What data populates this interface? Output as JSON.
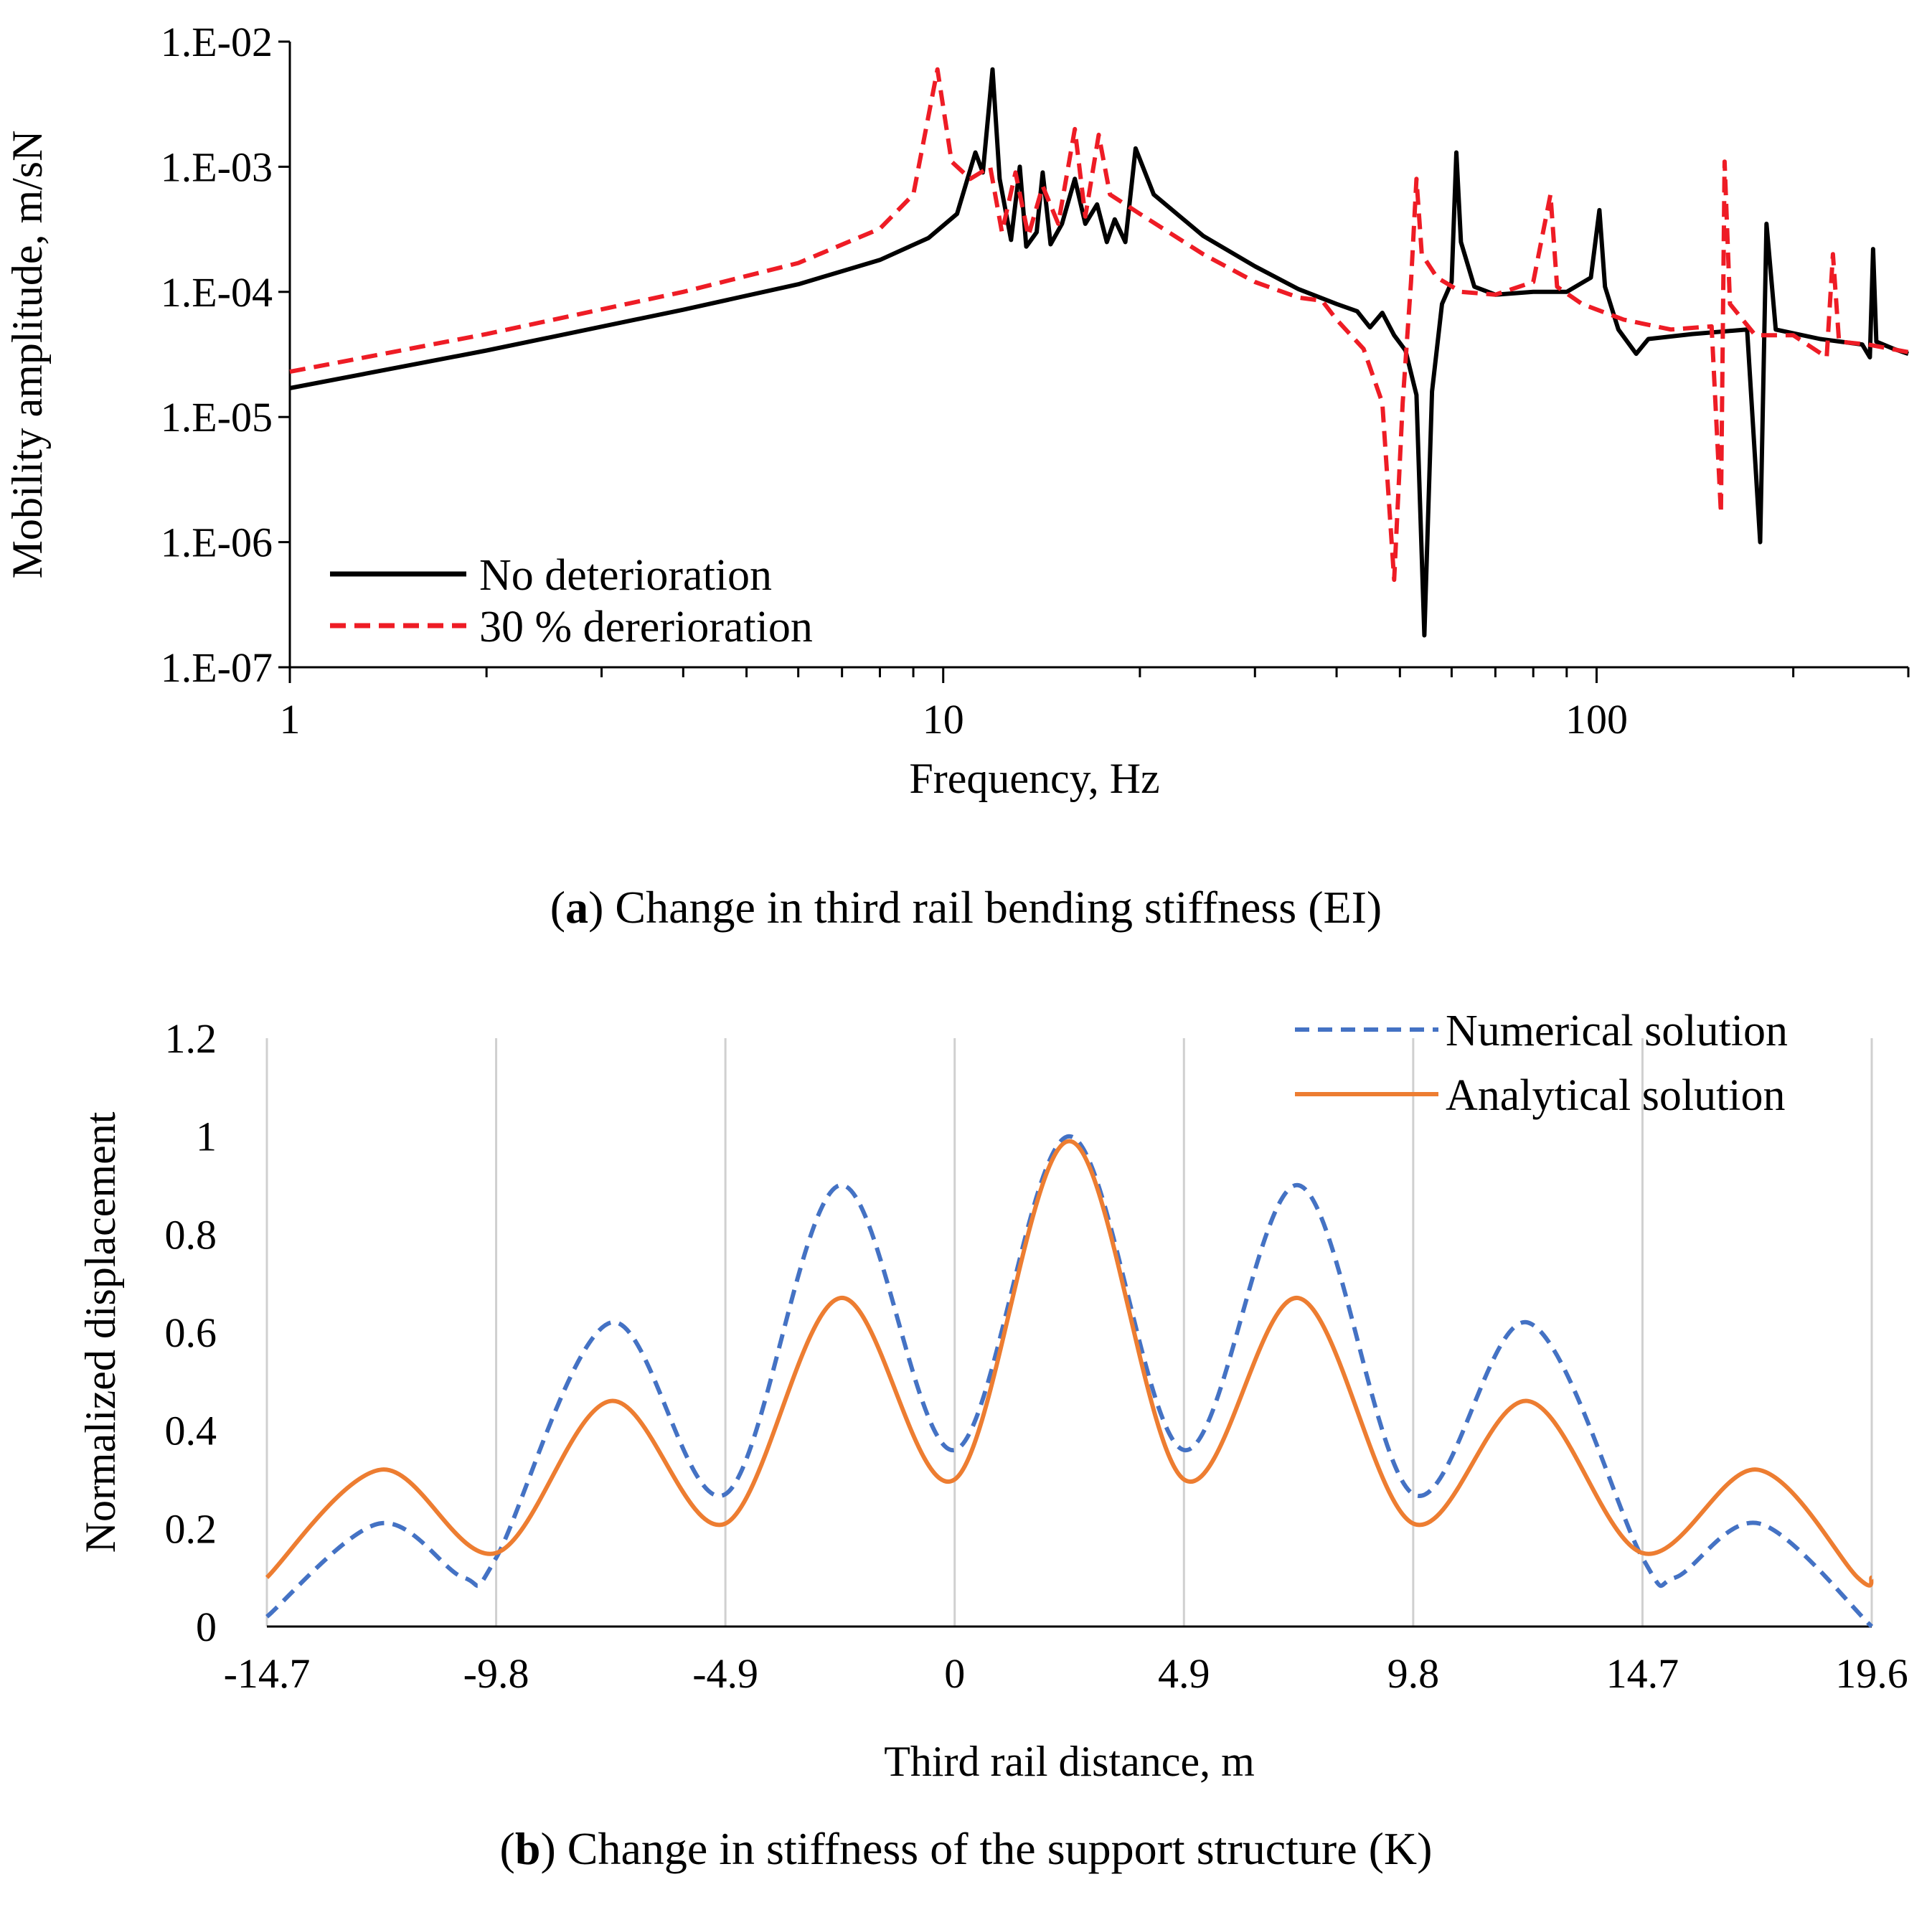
{
  "chart_data": [
    {
      "type": "line",
      "panel": "a",
      "caption_label": "a",
      "caption_text": ") Change in third rail bending stiffness (EI)",
      "xlabel": "Frequency, Hz",
      "ylabel": "Mobility amplitude, m/sN",
      "xscale": "log",
      "yscale": "log",
      "xlim": [
        1,
        300
      ],
      "ylim": [
        1e-07,
        0.01
      ],
      "x_ticks": [
        1,
        10,
        100
      ],
      "x_tick_labels": [
        "1",
        "10",
        "100"
      ],
      "y_ticks": [
        1e-07,
        1e-06,
        1e-05,
        0.0001,
        0.001,
        0.01
      ],
      "y_tick_labels": [
        "1.E-07",
        "1.E-06",
        "1.E-05",
        "1.E-04",
        "1.E-03",
        "1.E-02"
      ],
      "legend_position": "bottom-left",
      "series": [
        {
          "name": "No deterioration",
          "color": "#000000",
          "style": "solid",
          "points": [
            [
              1,
              1.7e-05
            ],
            [
              2,
              3.4e-05
            ],
            [
              4,
              7.2e-05
            ],
            [
              6,
              0.000115
            ],
            [
              8,
              0.00018
            ],
            [
              9.5,
              0.00027
            ],
            [
              10.5,
              0.00042
            ],
            [
              11.2,
              0.0013
            ],
            [
              11.5,
              0.0009
            ],
            [
              11.9,
              0.006
            ],
            [
              12.2,
              0.0008
            ],
            [
              12.7,
              0.00026
            ],
            [
              13.1,
              0.001
            ],
            [
              13.4,
              0.00023
            ],
            [
              13.9,
              0.0003
            ],
            [
              14.2,
              0.0009
            ],
            [
              14.6,
              0.00024
            ],
            [
              15.2,
              0.00035
            ],
            [
              15.9,
              0.0008
            ],
            [
              16.5,
              0.00035
            ],
            [
              17.2,
              0.0005
            ],
            [
              17.8,
              0.00025
            ],
            [
              18.3,
              0.00038
            ],
            [
              19,
              0.00025
            ],
            [
              19.7,
              0.0014
            ],
            [
              21,
              0.0006
            ],
            [
              25,
              0.00028
            ],
            [
              30,
              0.00016
            ],
            [
              35,
              0.000105
            ],
            [
              40,
              8e-05
            ],
            [
              43,
              7e-05
            ],
            [
              45,
              5.2e-05
            ],
            [
              47,
              6.8e-05
            ],
            [
              49,
              4.5e-05
            ],
            [
              51,
              3.4e-05
            ],
            [
              53,
              1.5e-05
            ],
            [
              54.5,
              1.8e-07
            ],
            [
              56,
              1.6e-05
            ],
            [
              58,
              8e-05
            ],
            [
              60,
              0.00012
            ],
            [
              61,
              0.0013
            ],
            [
              62,
              0.00025
            ],
            [
              65,
              0.00011
            ],
            [
              70,
              9.5e-05
            ],
            [
              80,
              0.0001
            ],
            [
              90,
              0.0001
            ],
            [
              98,
              0.00013
            ],
            [
              101,
              0.00045
            ],
            [
              103,
              0.00011
            ],
            [
              108,
              5e-05
            ],
            [
              115,
              3.2e-05
            ],
            [
              120,
              4.2e-05
            ],
            [
              140,
              4.6e-05
            ],
            [
              170,
              5e-05
            ],
            [
              178,
              1e-06
            ],
            [
              182,
              0.00035
            ],
            [
              188,
              5e-05
            ],
            [
              220,
              4.2e-05
            ],
            [
              255,
              3.8e-05
            ],
            [
              262,
              3e-05
            ],
            [
              265,
              0.00022
            ],
            [
              268,
              4e-05
            ],
            [
              285,
              3.5e-05
            ],
            [
              300,
              3.2e-05
            ]
          ]
        },
        {
          "name": "30 % dererioration",
          "color": "#ee1c25",
          "style": "dashed",
          "points": [
            [
              1,
              2.3e-05
            ],
            [
              2,
              4.6e-05
            ],
            [
              4,
              0.0001
            ],
            [
              6,
              0.00017
            ],
            [
              8,
              0.00032
            ],
            [
              9,
              0.0006
            ],
            [
              9.8,
              0.006
            ],
            [
              10.3,
              0.0011
            ],
            [
              11,
              0.0008
            ],
            [
              11.8,
              0.001
            ],
            [
              12.3,
              0.0003
            ],
            [
              12.9,
              0.0009
            ],
            [
              13.5,
              0.00028
            ],
            [
              14.2,
              0.0007
            ],
            [
              15,
              0.00035
            ],
            [
              15.9,
              0.002
            ],
            [
              16.5,
              0.0004
            ],
            [
              17.3,
              0.0018
            ],
            [
              18,
              0.0006
            ],
            [
              20,
              0.00042
            ],
            [
              25,
              0.0002
            ],
            [
              30,
              0.00012
            ],
            [
              35,
              9e-05
            ],
            [
              38,
              8.5e-05
            ],
            [
              40,
              6e-05
            ],
            [
              44,
              3.5e-05
            ],
            [
              47,
              1.3e-05
            ],
            [
              49,
              5e-07
            ],
            [
              50.5,
              1.3e-05
            ],
            [
              52,
              0.00012
            ],
            [
              53,
              0.0008
            ],
            [
              54,
              0.0002
            ],
            [
              57,
              0.00013
            ],
            [
              62,
              0.0001
            ],
            [
              70,
              9.5e-05
            ],
            [
              80,
              0.00012
            ],
            [
              85,
              0.0006
            ],
            [
              87,
              0.00011
            ],
            [
              95,
              8e-05
            ],
            [
              110,
              6e-05
            ],
            [
              130,
              5e-05
            ],
            [
              150,
              5.3e-05
            ],
            [
              155,
              1.7e-06
            ],
            [
              157,
              0.0011
            ],
            [
              160,
              8e-05
            ],
            [
              175,
              4.5e-05
            ],
            [
              200,
              4.5e-05
            ],
            [
              225,
              3e-05
            ],
            [
              230,
              0.0002
            ],
            [
              235,
              4e-05
            ],
            [
              260,
              3.8e-05
            ],
            [
              300,
              3.3e-05
            ]
          ]
        }
      ]
    },
    {
      "type": "line",
      "panel": "b",
      "caption_label": "b",
      "caption_text": ") Change in stiffness of the support structure (K)",
      "xlabel": "Third rail distance, m",
      "ylabel": "Normalized  displacement",
      "xlim": [
        -14.7,
        19.6
      ],
      "ylim": [
        0,
        1.2
      ],
      "x_ticks": [
        -14.7,
        -9.8,
        -4.9,
        0,
        4.9,
        9.8,
        14.7,
        19.6
      ],
      "x_tick_labels": [
        "-14.7",
        "-9.8",
        "-4.9",
        "0",
        "4.9",
        "9.8",
        "14.7",
        "19.6"
      ],
      "y_ticks": [
        0,
        0.2,
        0.4,
        0.6,
        0.8,
        1,
        1.2
      ],
      "y_tick_labels": [
        "0",
        "0.2",
        "0.4",
        "0.6",
        "0.8",
        "1",
        "1.2"
      ],
      "grid": "vertical",
      "legend_position": "top-right",
      "series": [
        {
          "name": "Numerical solution",
          "color": "#4472c4",
          "style": "dashed",
          "points": [
            [
              -14.7,
              0.02
            ],
            [
              -12.3,
              0.21
            ],
            [
              -10.5,
              0.1
            ],
            [
              -9.8,
              0.14
            ],
            [
              -7.35,
              0.62
            ],
            [
              -4.9,
              0.27
            ],
            [
              -2.45,
              0.9
            ],
            [
              0,
              0.36
            ],
            [
              2.45,
              1.0
            ],
            [
              4.9,
              0.36
            ],
            [
              7.35,
              0.9
            ],
            [
              9.8,
              0.27
            ],
            [
              12.25,
              0.62
            ],
            [
              14.7,
              0.14
            ],
            [
              15.4,
              0.1
            ],
            [
              17.2,
              0.21
            ],
            [
              19.6,
              0.0
            ]
          ]
        },
        {
          "name": "Analytical solution",
          "color": "#ed7d31",
          "style": "solid",
          "points": [
            [
              -14.7,
              0.1
            ],
            [
              -12.25,
              0.32
            ],
            [
              -9.8,
              0.15
            ],
            [
              -7.35,
              0.46
            ],
            [
              -4.9,
              0.21
            ],
            [
              -2.45,
              0.67
            ],
            [
              0,
              0.3
            ],
            [
              2.45,
              0.99
            ],
            [
              4.9,
              0.3
            ],
            [
              7.35,
              0.67
            ],
            [
              9.8,
              0.21
            ],
            [
              12.25,
              0.46
            ],
            [
              14.7,
              0.15
            ],
            [
              17.15,
              0.32
            ],
            [
              19.3,
              0.1
            ],
            [
              19.6,
              0.1
            ]
          ]
        }
      ]
    }
  ]
}
